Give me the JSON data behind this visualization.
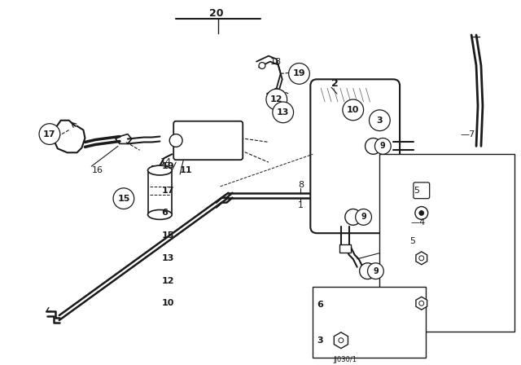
{
  "bg_color": "#ffffff",
  "fig_width": 6.4,
  "fig_height": 4.48,
  "dpi": 100,
  "line_color": "#1a1a1a",
  "watermark": "JJ030/1"
}
